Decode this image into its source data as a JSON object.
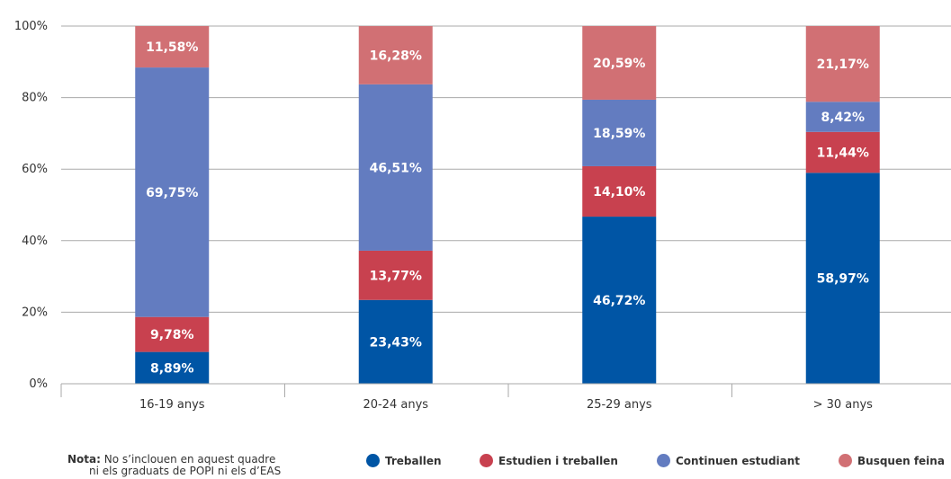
{
  "chart_data": {
    "type": "bar",
    "stacked": true,
    "categories": [
      "16-19 anys",
      "20-24 anys",
      "25-29 anys",
      "> 30 anys"
    ],
    "series": [
      {
        "name": "Treballen",
        "color": "#0055a5",
        "values": [
          8.89,
          23.43,
          46.72,
          58.97
        ],
        "labels": [
          "8,89%",
          "23,43%",
          "46,72%",
          "58,97%"
        ]
      },
      {
        "name": "Estudien i treballen",
        "color": "#c8414f",
        "values": [
          9.78,
          13.77,
          14.1,
          11.44
        ],
        "labels": [
          "9,78%",
          "13,77%",
          "14,10%",
          "11,44%"
        ]
      },
      {
        "name": "Continuen estudiant",
        "color": "#637cc0",
        "values": [
          69.75,
          46.51,
          18.59,
          8.42
        ],
        "labels": [
          "69,75%",
          "46,51%",
          "18,59%",
          "8,42%"
        ]
      },
      {
        "name": "Busquen feina",
        "color": "#d17074",
        "values": [
          11.58,
          16.28,
          20.59,
          21.17
        ],
        "labels": [
          "11,58%",
          "16,28%",
          "20,59%",
          "21,17%"
        ]
      }
    ],
    "ylim": [
      0,
      100
    ],
    "yticks": [
      "0%",
      "20%",
      "40%",
      "60%",
      "80%",
      "100%"
    ],
    "grid": true,
    "legend_position": "bottom"
  },
  "note": {
    "label": "Nota:",
    "line1": "No s’inclouen en aquest quadre",
    "line2": "ni els graduats de POPI ni els d’EAS"
  },
  "colors": {
    "grid": "#aaaaaa",
    "text": "#333333"
  }
}
